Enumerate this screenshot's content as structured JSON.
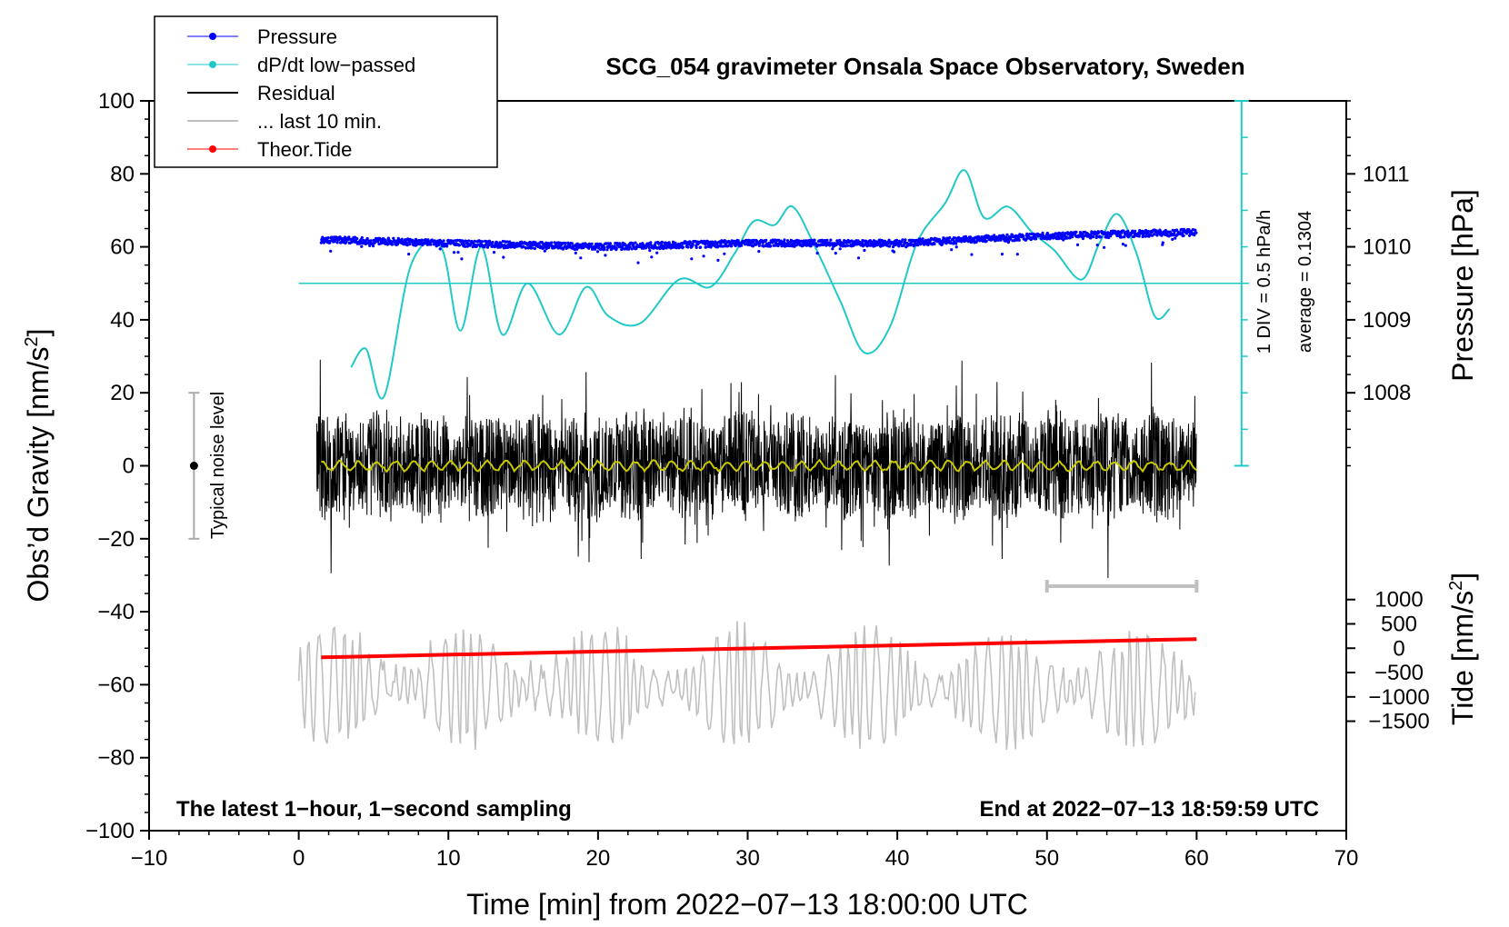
{
  "chart_data": {
    "type": "line",
    "title": "SCG_054 gravimeter Onsala Space Observatory, Sweden",
    "xlabel": "Time [min] from 2022−07−13 18:00:00 UTC",
    "ylabel": "Obs’d Gravity [nm/s²]",
    "ylabel_main": "Obs’d Gravity [nm/s",
    "ylabel_sup": "2",
    "ylabel_end": "]",
    "xlim": [
      -10,
      70
    ],
    "ylim": [
      -100,
      100
    ],
    "xticks": [
      {
        "v": -10,
        "label": "−10"
      },
      {
        "v": 0,
        "label": "0"
      },
      {
        "v": 10,
        "label": "10"
      },
      {
        "v": 20,
        "label": "20"
      },
      {
        "v": 30,
        "label": "30"
      },
      {
        "v": 40,
        "label": "40"
      },
      {
        "v": 50,
        "label": "50"
      },
      {
        "v": 60,
        "label": "60"
      },
      {
        "v": 70,
        "label": "70"
      }
    ],
    "yticks": [
      {
        "v": 100,
        "label": "100"
      },
      {
        "v": 80,
        "label": "80"
      },
      {
        "v": 60,
        "label": "60"
      },
      {
        "v": 40,
        "label": "40"
      },
      {
        "v": 20,
        "label": "20"
      },
      {
        "v": 0,
        "label": "0"
      },
      {
        "v": -20,
        "label": "−20"
      },
      {
        "v": -40,
        "label": "−40"
      },
      {
        "v": -60,
        "label": "−60"
      },
      {
        "v": -80,
        "label": "−80"
      },
      {
        "v": -100,
        "label": "−100"
      }
    ],
    "pressure_axis": {
      "label": "Pressure [hPa]",
      "unit_per_gravity": 0.05,
      "offset": 1010,
      "ticks": [
        {
          "v": 1011,
          "label": "1011"
        },
        {
          "v": 1010,
          "label": "1010"
        },
        {
          "v": 1009,
          "label": "1009"
        },
        {
          "v": 1008,
          "label": "1008"
        }
      ]
    },
    "tide_axis": {
      "label_main": "Tide [nm/s",
      "label_sup": "2",
      "label_end": "]",
      "scale": 75,
      "offset": -50,
      "ticks": [
        {
          "v": 1000,
          "label": "1000"
        },
        {
          "v": 500,
          "label": "500"
        },
        {
          "v": 0,
          "label": "0"
        },
        {
          "v": -500,
          "label": "−500"
        },
        {
          "v": -1000,
          "label": "−1000"
        },
        {
          "v": -1500,
          "label": "−1500"
        }
      ]
    },
    "series": [
      {
        "name": "Pressure",
        "color": "#0000ff",
        "x": [
          1.5,
          10,
          20,
          30,
          40,
          50,
          60
        ],
        "values": [
          62,
          61,
          60,
          61,
          61,
          63,
          64
        ]
      },
      {
        "name": "dP/dt low−passed",
        "color": "#20c8c8",
        "x": [
          3.5,
          4.5,
          5.7,
          7.5,
          9.5,
          10.8,
          12.2,
          13.6,
          15.3,
          17.4,
          19.2,
          20.7,
          22.8,
          25.4,
          27.5,
          29.1,
          30.4,
          31.8,
          33,
          34.5,
          36.2,
          37.8,
          39.5,
          41.3,
          43.2,
          44.5,
          45.8,
          47.4,
          49,
          50.5,
          52.3,
          53.5,
          54.7,
          56,
          57.2,
          58.2
        ],
        "values": [
          27,
          32,
          19,
          55,
          60,
          37,
          60,
          36,
          50,
          36,
          49,
          41,
          39,
          51,
          49,
          58,
          67,
          66,
          71,
          60,
          45,
          31,
          38,
          61,
          72,
          81,
          68,
          71,
          64,
          59,
          51,
          61,
          69,
          58,
          41,
          43
        ]
      },
      {
        "name": "Residual",
        "color": "#000000",
        "x": [
          1.2,
          60
        ],
        "values": [
          0,
          0
        ]
      },
      {
        "name": "... last 10 min.",
        "color": "#c0c0c0",
        "x": [
          0,
          60
        ],
        "values": [
          -60,
          -62
        ]
      },
      {
        "name": "Theor.Tide",
        "color": "#ff0000",
        "x": [
          1.5,
          60
        ],
        "values": [
          -52.5,
          -47.5
        ]
      }
    ],
    "legend_position": "top-left",
    "dpdt_reference": {
      "level": 50,
      "scale_text": "1 DIV = 0.5 hPa/h",
      "average_text": "average = 0.1304"
    },
    "noise_label": "Typical noise level",
    "noise_range": [
      -20,
      20
    ],
    "last10_bar_range": [
      50,
      60
    ],
    "bottom_left_text": "The latest 1−hour, 1−second sampling",
    "bottom_right_text": "End at 2022−07−13 18:59:59 UTC"
  }
}
